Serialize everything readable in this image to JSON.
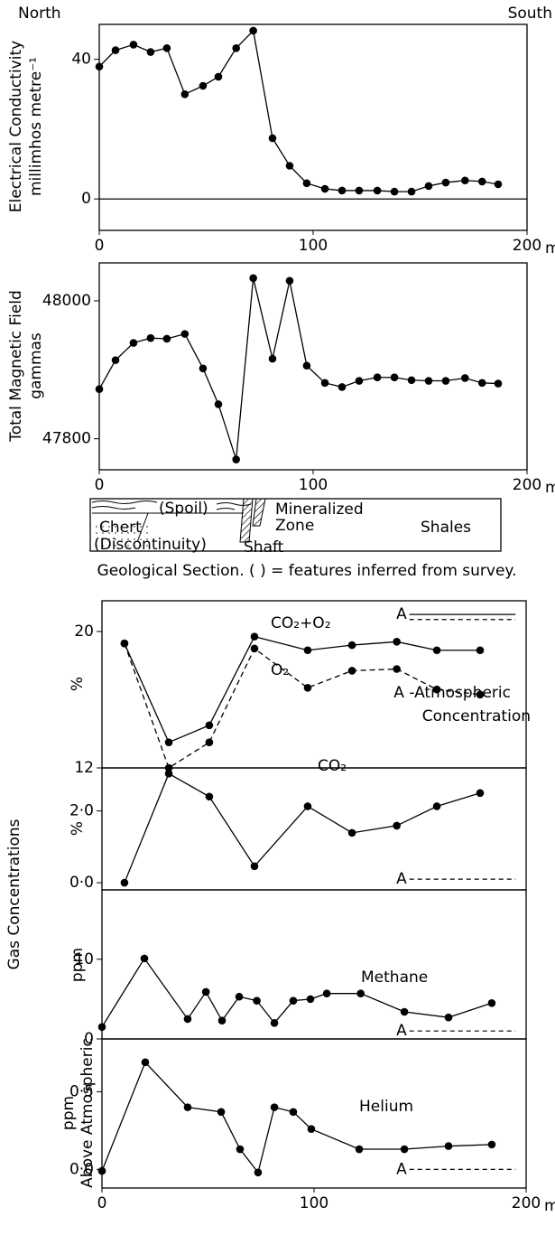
{
  "chart_data": [
    {
      "type": "line",
      "side_labels": [
        "North",
        "South"
      ],
      "ylabel": [
        "Electrical Conductivity",
        "millimhos metre⁻¹"
      ],
      "xlabel": "metres",
      "x": [
        0,
        7.6,
        16,
        24,
        31.6,
        40,
        48.5,
        55.7,
        64,
        72,
        81,
        89,
        97,
        105.5,
        113.5,
        121.5,
        130,
        138,
        146,
        154,
        162,
        171,
        179,
        186.5
      ],
      "series": [
        {
          "color": "#000000",
          "values": [
            37.9,
            42.6,
            44.2,
            42.1,
            43.2,
            30,
            32.4,
            35,
            43.2,
            48.2,
            17.4,
            9.5,
            4.5,
            2.9,
            2.4,
            2.4,
            2.4,
            2.1,
            2.1,
            3.7,
            4.7,
            5.3,
            5.0,
            4.2
          ]
        }
      ],
      "xlim": [
        0,
        200
      ],
      "xticks": [
        0,
        100,
        200
      ],
      "ylim": [
        -9,
        50
      ],
      "yticks": [
        0,
        40
      ],
      "zero_line": true
    },
    {
      "type": "line",
      "ylabel": [
        "Total Magnetic Field",
        "gammas"
      ],
      "xlabel": "metres",
      "x": [
        0,
        7.6,
        16,
        24,
        31.6,
        40,
        48.5,
        55.7,
        64,
        72,
        81,
        89,
        97,
        105.5,
        113.5,
        121.5,
        130,
        138,
        146,
        154,
        162,
        171,
        179,
        186.5
      ],
      "series": [
        {
          "color": "#000000",
          "values": [
            47872,
            47914,
            47939,
            47946,
            47945,
            47952,
            47902,
            47850,
            47770,
            48033,
            47916,
            48029,
            47906,
            47881,
            47875,
            47884,
            47889,
            47889,
            47885,
            47884,
            47884,
            47888,
            47881,
            47880
          ]
        }
      ],
      "xlim": [
        0,
        200
      ],
      "xticks": [
        0,
        100,
        200
      ],
      "ylim": [
        47755,
        48055
      ],
      "yticks": [
        47800,
        48000
      ]
    },
    {
      "type": "line",
      "ylabel": [
        "%"
      ],
      "annotation": [
        "A -Atmospheric",
        "Concentration"
      ],
      "x": [
        10.6,
        31.5,
        50.6,
        71.9,
        97,
        117.9,
        139,
        157.9,
        178.3
      ],
      "series": [
        {
          "name": "CO₂+O₂",
          "color": "#000000",
          "values": [
            19.3,
            13.5,
            14.5,
            19.7,
            18.9,
            19.2,
            19.4,
            18.9,
            18.9
          ]
        },
        {
          "name": "O₂",
          "color": "#000000",
          "dash": true,
          "values": [
            19.3,
            12.0,
            13.5,
            19.0,
            16.7,
            17.7,
            17.8,
            16.6,
            16.3
          ]
        }
      ],
      "atmospheric": {
        "label": "A",
        "values": [
          21.0,
          20.7
        ],
        "dash": [
          false,
          true
        ]
      },
      "xlim": [
        0,
        200
      ],
      "ylim": [
        12,
        21.8
      ],
      "yticks": [
        12,
        20
      ]
    },
    {
      "type": "line",
      "ylabel": [
        "%"
      ],
      "x": [
        10.6,
        31.5,
        50.6,
        71.9,
        97,
        117.9,
        139,
        157.9,
        178.3
      ],
      "series": [
        {
          "name": "CO₂",
          "color": "#000000",
          "values": [
            0.0,
            3.04,
            2.4,
            0.46,
            2.13,
            1.39,
            1.59,
            2.13,
            2.5
          ]
        }
      ],
      "atmospheric": {
        "label": "A",
        "values": [
          0.1
        ],
        "dash": [
          true
        ]
      },
      "xlim": [
        0,
        200
      ],
      "ylim": [
        -0.2,
        3.2
      ],
      "yticks": [
        {
          "value": 0,
          "label": "0·0"
        },
        {
          "value": 2,
          "label": "2·0"
        }
      ]
    },
    {
      "type": "line",
      "ylabel": [
        "ppm"
      ],
      "x": [
        0,
        20,
        40.4,
        49,
        56.6,
        64.7,
        73,
        81.3,
        90.2,
        98.3,
        106,
        122,
        142.6,
        163.4,
        183.8
      ],
      "series": [
        {
          "name": "Methane",
          "color": "#000000",
          "values": [
            1.5,
            10.1,
            2.5,
            5.9,
            2.3,
            5.3,
            4.8,
            2.0,
            4.8,
            5.0,
            5.7,
            5.7,
            3.4,
            2.7,
            4.5
          ]
        }
      ],
      "atmospheric": {
        "label": "A",
        "values": [
          1.0
        ],
        "dash": [
          true
        ]
      },
      "xlim": [
        0,
        200
      ],
      "ylim": [
        0,
        18.7
      ],
      "yticks": [
        0,
        10
      ]
    },
    {
      "type": "line",
      "ylabel": [
        "ppm",
        "Above Atmospheric"
      ],
      "xlabel": "metres",
      "x": [
        0,
        20.4,
        40.4,
        56.2,
        65.1,
        73.6,
        81.3,
        90.2,
        98.7,
        121.3,
        142.6,
        163.4,
        183.8
      ],
      "series": [
        {
          "name": "Helium",
          "color": "#000000",
          "values": [
            -0.01,
            0.69,
            0.4,
            0.37,
            0.13,
            -0.02,
            0.4,
            0.37,
            0.26,
            0.13,
            0.13,
            0.15,
            0.16
          ]
        }
      ],
      "atmospheric": {
        "label": "A",
        "values": [
          0.0
        ],
        "dash": [
          true
        ]
      },
      "xlim": [
        0,
        200
      ],
      "xticks": [
        0,
        100,
        200
      ],
      "ylim": [
        -0.12,
        0.84
      ],
      "yticks": [
        {
          "value": 0,
          "label": "0·0"
        },
        {
          "value": 0.5,
          "label": "0·5"
        }
      ]
    }
  ],
  "gas_label": "Gas Concentrations",
  "geological_section": {
    "labels": [
      "(Spoil)",
      "Mineralized",
      "Zone",
      "Chert",
      "Shales",
      "(Discontinuity)",
      "Shaft"
    ],
    "caption": "Geological Section. ( ) = features inferred from survey."
  }
}
